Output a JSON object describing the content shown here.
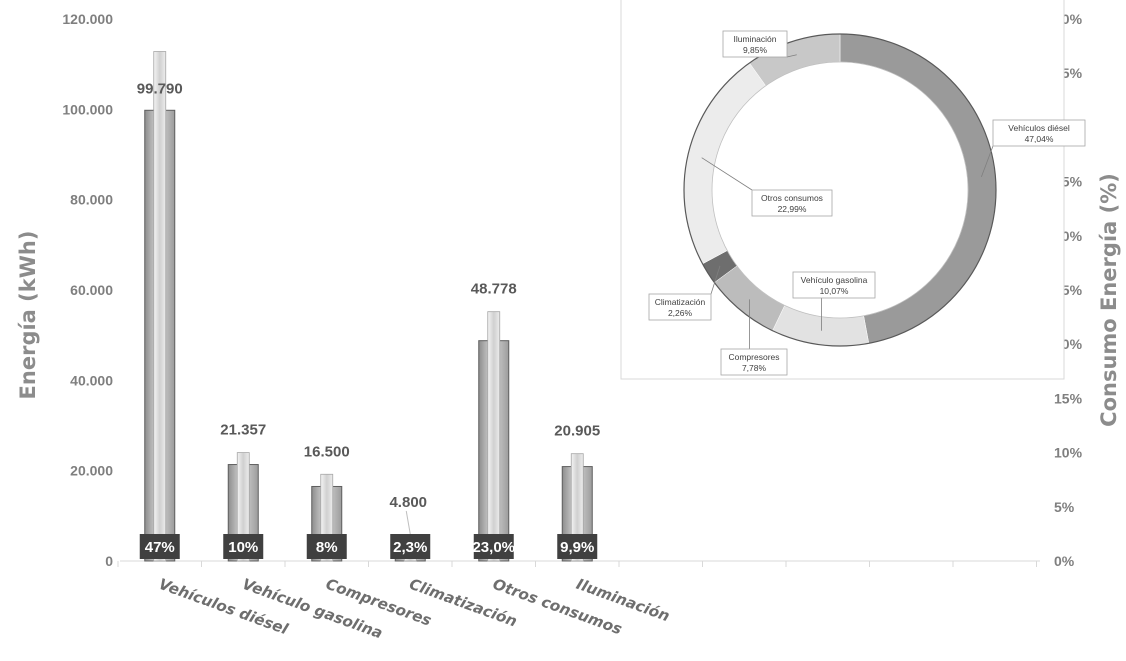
{
  "chart_data": [
    {
      "type": "bar",
      "categories": [
        "Vehículos diésel",
        "Vehículo gasolina",
        "Compresores",
        "Climatización",
        "Otros consumos",
        "Iluminación"
      ],
      "values": [
        99790,
        21357,
        16500,
        4800,
        48778,
        20905
      ],
      "value_labels": [
        "99.790",
        "21.357",
        "16.500",
        "4.800",
        "48.778",
        "20.905"
      ],
      "percent_labels": [
        "47%",
        "10%",
        "8%",
        "2,3%",
        "23,0%",
        "9,9%"
      ],
      "percent_values": [
        47,
        10,
        8,
        2.3,
        23.0,
        9.9
      ],
      "ylabel": "Energía (kWh)",
      "ylabel_right": "Consumo Energía (%)",
      "ylim": [
        0,
        120000
      ],
      "yticks": [
        "0",
        "20.000",
        "40.000",
        "60.000",
        "80.000",
        "100.000",
        "120.000"
      ],
      "y2lim": [
        0,
        50
      ],
      "y2ticks": [
        "0%",
        "5%",
        "10%",
        "15%",
        "20%",
        "25%",
        "30%",
        "35%",
        "40%",
        "45%",
        "50%"
      ],
      "grid": false
    },
    {
      "type": "pie",
      "style": "donut",
      "labels": [
        "Vehículos diésel",
        "Vehículo gasolina",
        "Compresores",
        "Climatización",
        "Otros consumos",
        "Iluminación"
      ],
      "values": [
        47.04,
        10.07,
        7.78,
        2.26,
        22.99,
        9.85
      ],
      "value_labels": [
        "47,04%",
        "10,07%",
        "7,78%",
        "2,26%",
        "22,99%",
        "9,85%"
      ],
      "colors": [
        "#9a9a9a",
        "#e2e2e2",
        "#bcbcbc",
        "#6e6e6e",
        "#ececec",
        "#c8c8c8"
      ]
    }
  ]
}
